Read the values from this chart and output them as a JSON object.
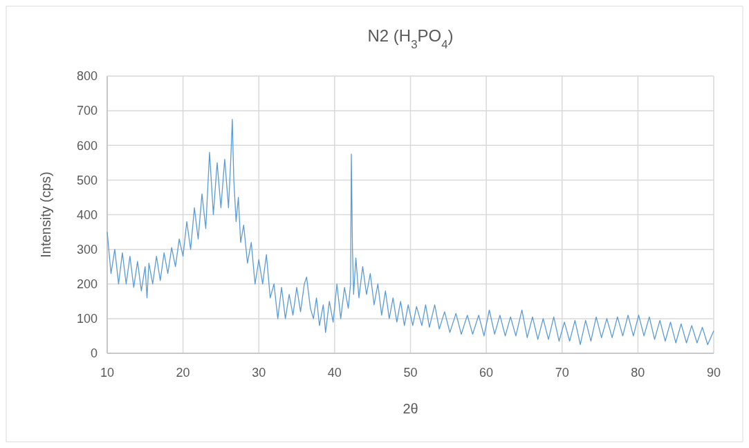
{
  "chart_data": {
    "type": "line",
    "title": "N2 (H$_{3}$PO$_{4}$)",
    "xlabel": "2θ",
    "ylabel": "Intensity (cps)",
    "x": [
      10,
      10.5,
      11,
      11.5,
      12,
      12.5,
      13,
      13.5,
      14,
      14.5,
      15,
      15.25,
      15.5,
      16,
      16.5,
      17,
      17.5,
      18,
      18.5,
      19,
      19.5,
      20,
      20.5,
      21,
      21.5,
      22,
      22.5,
      23,
      23.5,
      24,
      24.5,
      25,
      25.5,
      26,
      26.3,
      26.5,
      26.7,
      27,
      27.3,
      27.6,
      28,
      28.5,
      29,
      29.5,
      30,
      30.5,
      31,
      31.5,
      32,
      32.5,
      33,
      33.5,
      34,
      34.5,
      35,
      35.5,
      36,
      36.3,
      36.8,
      37.2,
      37.6,
      38,
      38.5,
      38.8,
      39.3,
      39.8,
      40.3,
      40.8,
      41.3,
      41.8,
      42.1,
      42.2,
      42.35,
      42.5,
      42.8,
      43.2,
      43.7,
      44.2,
      44.7,
      45.2,
      45.7,
      46.2,
      46.7,
      47.2,
      47.7,
      48.2,
      48.7,
      49.2,
      49.7,
      50.3,
      50.8,
      51.5,
      52,
      52.5,
      53.2,
      53.8,
      54.5,
      55.2,
      56,
      56.7,
      57.5,
      58.2,
      59,
      59.7,
      60.4,
      61.1,
      61.8,
      62.5,
      63.2,
      63.9,
      64.7,
      65.4,
      66.1,
      66.8,
      67.5,
      68.2,
      68.9,
      69.6,
      70.3,
      71,
      71.7,
      72.4,
      73.1,
      73.8,
      74.5,
      75.2,
      75.9,
      76.6,
      77.3,
      78,
      78.7,
      79.4,
      80.1,
      80.8,
      81.5,
      82.2,
      82.9,
      83.6,
      84.3,
      85,
      85.7,
      86.4,
      87.1,
      87.8,
      88.5,
      89.2,
      90
    ],
    "series": [
      {
        "color": "#5b9bd5",
        "values": [
          350,
          230,
          300,
          200,
          290,
          200,
          280,
          190,
          265,
          180,
          250,
          160,
          260,
          200,
          280,
          210,
          290,
          230,
          305,
          250,
          330,
          280,
          380,
          300,
          420,
          330,
          460,
          360,
          580,
          400,
          550,
          420,
          560,
          420,
          560,
          675,
          500,
          380,
          450,
          320,
          370,
          260,
          320,
          200,
          270,
          200,
          285,
          160,
          200,
          100,
          190,
          100,
          170,
          110,
          190,
          120,
          200,
          220,
          130,
          100,
          160,
          80,
          140,
          60,
          150,
          90,
          200,
          100,
          190,
          130,
          200,
          575,
          300,
          170,
          275,
          160,
          250,
          170,
          230,
          140,
          200,
          110,
          180,
          100,
          160,
          90,
          150,
          80,
          140,
          80,
          135,
          80,
          140,
          75,
          140,
          70,
          120,
          60,
          115,
          55,
          110,
          55,
          110,
          50,
          125,
          55,
          110,
          50,
          105,
          50,
          125,
          45,
          105,
          40,
          100,
          40,
          105,
          35,
          90,
          35,
          95,
          25,
          95,
          35,
          105,
          45,
          100,
          45,
          105,
          50,
          110,
          50,
          110,
          50,
          105,
          40,
          95,
          35,
          90,
          30,
          85,
          30,
          80,
          30,
          75,
          25,
          65
        ]
      }
    ],
    "xlim": [
      10,
      90
    ],
    "xticks": [
      10,
      20,
      30,
      40,
      50,
      60,
      70,
      80,
      90
    ],
    "ylim": [
      0,
      800
    ],
    "yticks": [
      0,
      100,
      200,
      300,
      400,
      500,
      600,
      700,
      800
    ],
    "grid": true,
    "marker": "none",
    "line_style": "solid"
  }
}
